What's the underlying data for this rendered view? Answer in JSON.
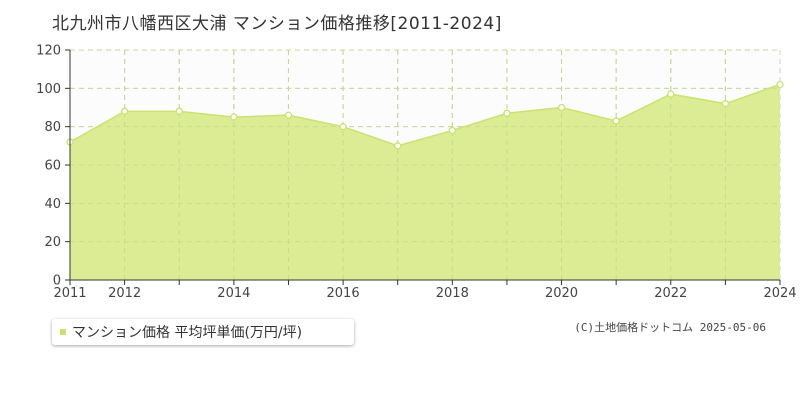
{
  "chart_data": {
    "type": "area",
    "title": "北九州市八幡西区大浦 マンション価格推移[2011-2024]",
    "x": [
      2011,
      2012,
      2013,
      2014,
      2015,
      2016,
      2017,
      2018,
      2019,
      2020,
      2021,
      2022,
      2023,
      2024
    ],
    "series": [
      {
        "name": "マンション価格 平均坪単価(万円/坪)",
        "values": [
          72,
          88,
          88,
          85,
          86,
          80,
          70,
          78,
          87,
          90,
          83,
          97,
          92,
          102
        ],
        "color": "#c9e36f"
      }
    ],
    "x_tick_labels": [
      "2011",
      "2012",
      "2014",
      "2016",
      "2018",
      "2020",
      "2022",
      "2024"
    ],
    "y_tick_labels": [
      "0",
      "20",
      "40",
      "60",
      "80",
      "100",
      "120"
    ],
    "xlim": [
      2011,
      2024
    ],
    "ylim": [
      0,
      120
    ],
    "grid": true,
    "legend_position": "bottom-left",
    "fill_color": "#dcec94",
    "line_color": "#c9e36f"
  },
  "credit": "(C)土地価格ドットコム 2025-05-06"
}
